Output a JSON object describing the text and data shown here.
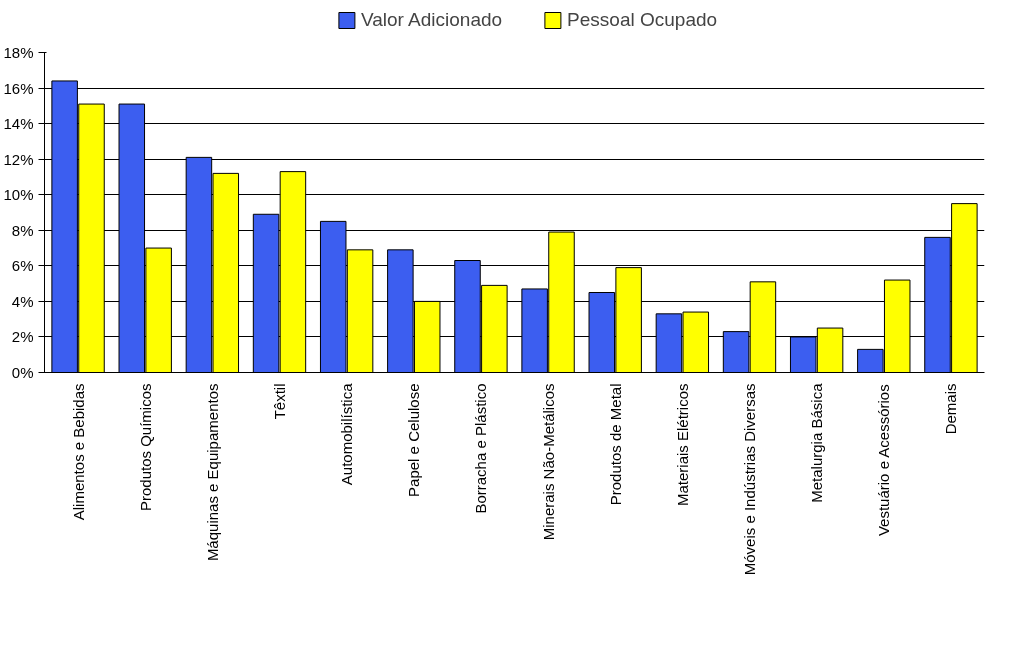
{
  "chart_data": {
    "type": "bar",
    "categories": [
      "Alimentos e Bebidas",
      "Produtos Químicos",
      "Máquinas e Equipamentos",
      "Têxtil",
      "Automobilística",
      "Papel e Celulose",
      "Borracha e Plástico",
      "Minerais Não-Metálicos",
      "Produtos de Metal",
      "Materiais Elétricos",
      "Móveis e Indústrias Diversas",
      "Metalurgia Básica",
      "Vestuário e Acessórios",
      "Demais"
    ],
    "series": [
      {
        "name": "Valor Adicionado",
        "color": "#3c5ef0",
        "values": [
          16.4,
          15.1,
          12.1,
          8.9,
          8.5,
          6.9,
          6.3,
          4.7,
          4.5,
          3.3,
          2.3,
          2.0,
          1.3,
          7.6
        ]
      },
      {
        "name": "Pessoal Ocupado",
        "color": "#ffff00",
        "values": [
          15.1,
          7.0,
          11.2,
          11.3,
          6.9,
          4.0,
          4.9,
          7.9,
          5.9,
          3.4,
          5.1,
          2.5,
          5.2,
          9.5
        ]
      }
    ],
    "ylim": [
      0,
      18
    ],
    "yticks": [
      {
        "value": 0,
        "label": "0%"
      },
      {
        "value": 2,
        "label": "2%"
      },
      {
        "value": 4,
        "label": "4%"
      },
      {
        "value": 6,
        "label": "6%"
      },
      {
        "value": 8,
        "label": "8%"
      },
      {
        "value": 10,
        "label": "10%"
      },
      {
        "value": 12,
        "label": "12%"
      },
      {
        "value": 14,
        "label": "14%"
      },
      {
        "value": 16,
        "label": "16%"
      },
      {
        "value": 18,
        "label": "18%"
      }
    ],
    "grid": "y",
    "legend": "top"
  }
}
